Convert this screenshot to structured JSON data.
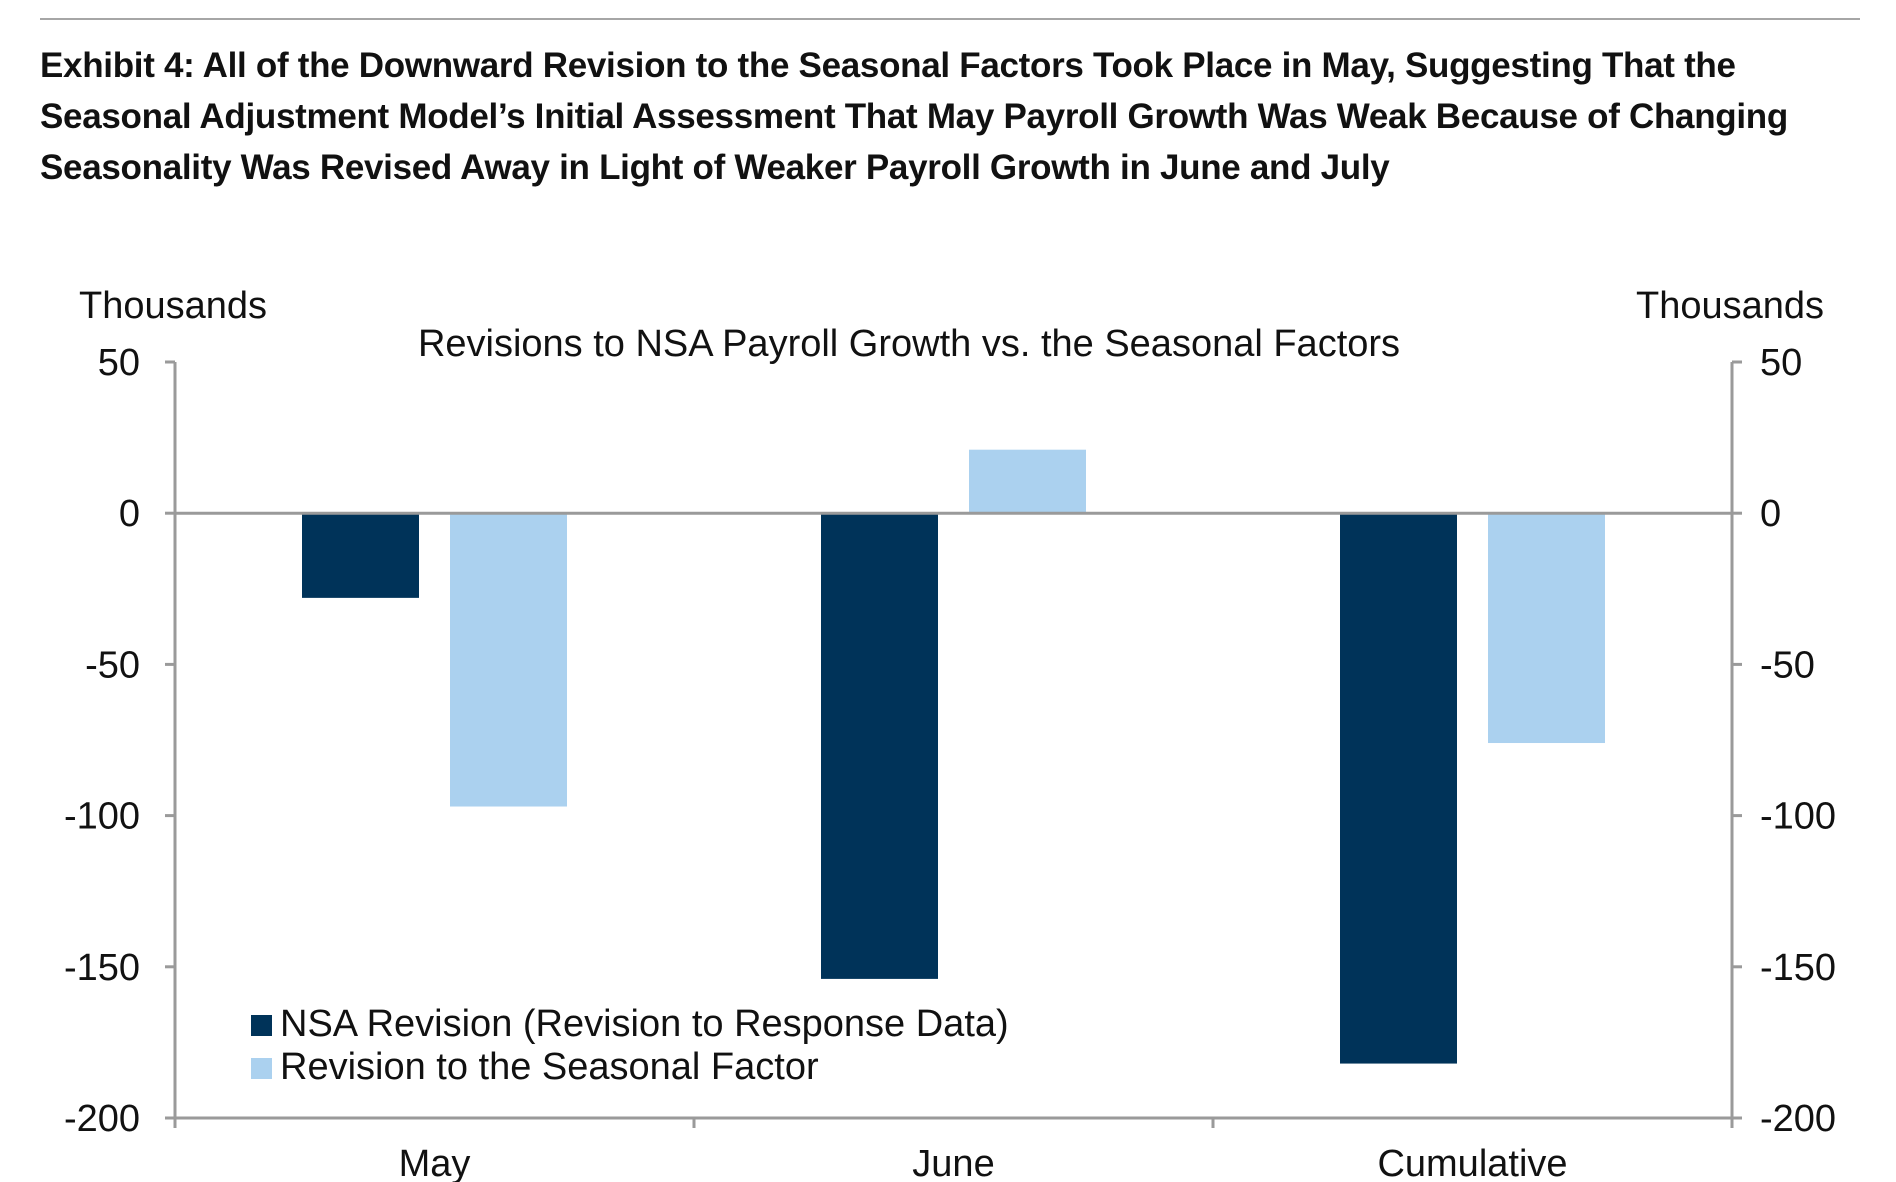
{
  "exhibit": {
    "title": "Exhibit 4: All of the Downward Revision to the Seasonal Factors Took Place in May, Suggesting That the Seasonal Adjustment Model’s Initial Assessment That May Payroll Growth Was Weak Because of Changing Seasonality Was Revised Away in Light of Weaker Payroll Growth in June and July"
  },
  "chart_data": {
    "type": "bar",
    "title": "Revisions to NSA Payroll Growth vs. the Seasonal Factors",
    "ylabel_left": "Thousands",
    "ylabel_right": "Thousands",
    "categories": [
      "May",
      "June",
      "Cumulative"
    ],
    "ylim": [
      -200,
      50
    ],
    "yticks": [
      50,
      0,
      -50,
      -100,
      -150,
      -200
    ],
    "series": [
      {
        "name": "NSA Revision (Revision to Response Data)",
        "color": "#003359",
        "values": [
          -28,
          -154,
          -182
        ]
      },
      {
        "name": "Revision to the Seasonal Factor",
        "color": "#abd1ef",
        "values": [
          -97,
          21,
          -76
        ]
      }
    ],
    "legend_position": "bottom-left",
    "grid": false
  },
  "colors": {
    "axis": "#9a9a9a",
    "text": "#111111"
  }
}
